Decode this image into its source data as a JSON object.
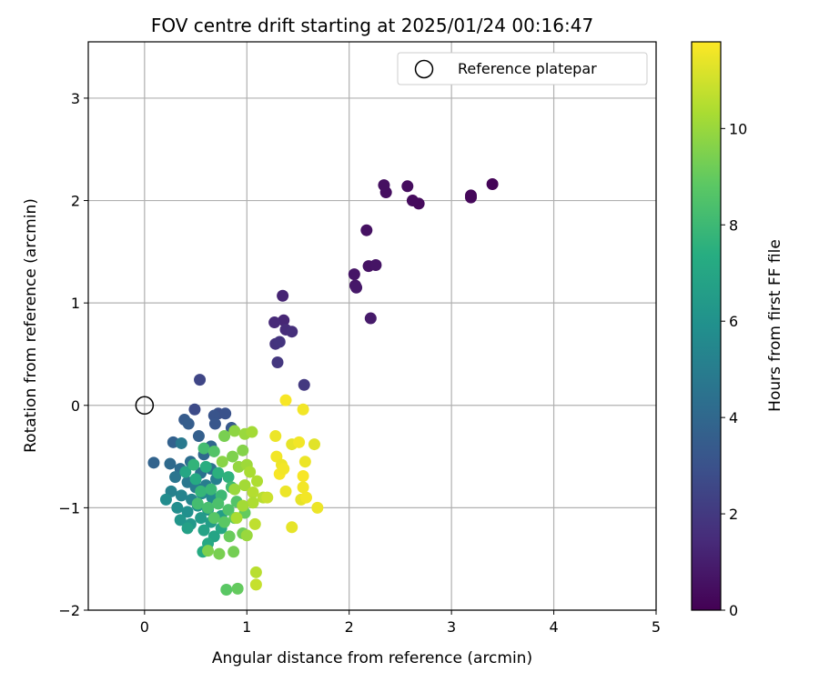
{
  "chart_data": {
    "type": "scatter",
    "title": "FOV centre drift starting at 2025/01/24 00:16:47",
    "xlabel": "Angular distance from reference (arcmin)",
    "ylabel": "Rotation from reference (arcmin)",
    "xlim": [
      -0.55,
      5.0
    ],
    "ylim": [
      -2.0,
      3.55
    ],
    "xticks": [
      0,
      1,
      2,
      3,
      4,
      5
    ],
    "xtick_labels": [
      "0",
      "1",
      "2",
      "3",
      "4",
      "5"
    ],
    "yticks": [
      -2,
      -1,
      0,
      1,
      2,
      3
    ],
    "ytick_labels": [
      "−2",
      "−1",
      "0",
      "1",
      "2",
      "3"
    ],
    "grid": true,
    "legend": {
      "entries": [
        "Reference platepar"
      ],
      "placement": "top-right"
    },
    "colorbar": {
      "label": "Hours from first FF file",
      "colormap": "viridis",
      "range": [
        0,
        11.8
      ],
      "ticks": [
        0,
        2,
        4,
        6,
        8,
        10
      ],
      "tick_labels": [
        "0",
        "2",
        "4",
        "6",
        "8",
        "10"
      ]
    },
    "reference_point": {
      "x": 0,
      "y": 0
    },
    "points": [
      {
        "x": 3.4,
        "y": 2.16,
        "h": 0.1
      },
      {
        "x": 3.19,
        "y": 2.05,
        "h": 0.2
      },
      {
        "x": 3.19,
        "y": 2.03,
        "h": 0.25
      },
      {
        "x": 2.68,
        "y": 1.97,
        "h": 0.3
      },
      {
        "x": 2.62,
        "y": 2.0,
        "h": 0.35
      },
      {
        "x": 2.57,
        "y": 2.14,
        "h": 0.4
      },
      {
        "x": 2.36,
        "y": 2.08,
        "h": 0.45
      },
      {
        "x": 2.34,
        "y": 2.15,
        "h": 0.5
      },
      {
        "x": 2.17,
        "y": 1.71,
        "h": 0.55
      },
      {
        "x": 2.19,
        "y": 1.36,
        "h": 0.6
      },
      {
        "x": 2.26,
        "y": 1.37,
        "h": 0.65
      },
      {
        "x": 2.05,
        "y": 1.28,
        "h": 0.7
      },
      {
        "x": 2.06,
        "y": 1.17,
        "h": 0.75
      },
      {
        "x": 2.07,
        "y": 1.15,
        "h": 0.8
      },
      {
        "x": 2.21,
        "y": 0.85,
        "h": 0.85
      },
      {
        "x": 1.35,
        "y": 1.07,
        "h": 1.2
      },
      {
        "x": 1.36,
        "y": 0.83,
        "h": 1.3
      },
      {
        "x": 1.27,
        "y": 0.81,
        "h": 1.4
      },
      {
        "x": 1.38,
        "y": 0.74,
        "h": 1.5
      },
      {
        "x": 1.44,
        "y": 0.72,
        "h": 1.6
      },
      {
        "x": 1.28,
        "y": 0.6,
        "h": 1.7
      },
      {
        "x": 1.32,
        "y": 0.62,
        "h": 1.8
      },
      {
        "x": 1.3,
        "y": 0.42,
        "h": 1.9
      },
      {
        "x": 1.56,
        "y": 0.2,
        "h": 2.0
      },
      {
        "x": 0.54,
        "y": 0.25,
        "h": 2.5
      },
      {
        "x": 0.49,
        "y": -0.04,
        "h": 2.7
      },
      {
        "x": 0.72,
        "y": -0.08,
        "h": 2.9
      },
      {
        "x": 0.79,
        "y": -0.08,
        "h": 3.0
      },
      {
        "x": 0.68,
        "y": -0.1,
        "h": 3.1
      },
      {
        "x": 0.69,
        "y": -0.18,
        "h": 3.2
      },
      {
        "x": 0.85,
        "y": -0.22,
        "h": 3.3
      },
      {
        "x": 0.39,
        "y": -0.14,
        "h": 3.4
      },
      {
        "x": 0.43,
        "y": -0.18,
        "h": 3.5
      },
      {
        "x": 0.53,
        "y": -0.3,
        "h": 3.6
      },
      {
        "x": 0.28,
        "y": -0.36,
        "h": 3.7
      },
      {
        "x": 0.36,
        "y": -0.37,
        "h": 4.8
      },
      {
        "x": 0.09,
        "y": -0.56,
        "h": 3.8
      },
      {
        "x": 0.65,
        "y": -0.4,
        "h": 3.9
      },
      {
        "x": 0.58,
        "y": -0.48,
        "h": 4.0
      },
      {
        "x": 0.25,
        "y": -0.57,
        "h": 4.1
      },
      {
        "x": 0.35,
        "y": -0.62,
        "h": 4.2
      },
      {
        "x": 0.45,
        "y": -0.55,
        "h": 4.3
      },
      {
        "x": 0.55,
        "y": -0.66,
        "h": 4.4
      },
      {
        "x": 0.65,
        "y": -0.62,
        "h": 4.5
      },
      {
        "x": 0.3,
        "y": -0.7,
        "h": 4.6
      },
      {
        "x": 0.42,
        "y": -0.75,
        "h": 4.7
      },
      {
        "x": 0.5,
        "y": -0.8,
        "h": 4.9
      },
      {
        "x": 0.6,
        "y": -0.78,
        "h": 5.0
      },
      {
        "x": 0.7,
        "y": -0.72,
        "h": 5.1
      },
      {
        "x": 0.26,
        "y": -0.84,
        "h": 5.2
      },
      {
        "x": 0.36,
        "y": -0.88,
        "h": 5.3
      },
      {
        "x": 0.46,
        "y": -0.92,
        "h": 5.4
      },
      {
        "x": 0.56,
        "y": -0.86,
        "h": 5.5
      },
      {
        "x": 0.66,
        "y": -0.9,
        "h": 5.6
      },
      {
        "x": 0.21,
        "y": -0.92,
        "h": 5.7
      },
      {
        "x": 0.32,
        "y": -1.0,
        "h": 5.8
      },
      {
        "x": 0.42,
        "y": -1.04,
        "h": 5.9
      },
      {
        "x": 0.52,
        "y": -0.98,
        "h": 6.0
      },
      {
        "x": 0.62,
        "y": -1.02,
        "h": 6.1
      },
      {
        "x": 0.35,
        "y": -1.12,
        "h": 6.2
      },
      {
        "x": 0.45,
        "y": -1.16,
        "h": 6.3
      },
      {
        "x": 0.55,
        "y": -1.1,
        "h": 6.4
      },
      {
        "x": 0.65,
        "y": -1.14,
        "h": 6.5
      },
      {
        "x": 0.75,
        "y": -1.08,
        "h": 6.6
      },
      {
        "x": 0.42,
        "y": -1.2,
        "h": 6.7
      },
      {
        "x": 0.58,
        "y": -1.22,
        "h": 6.8
      },
      {
        "x": 0.68,
        "y": -1.28,
        "h": 6.9
      },
      {
        "x": 0.75,
        "y": -1.2,
        "h": 7.0
      },
      {
        "x": 0.62,
        "y": -1.35,
        "h": 7.1
      },
      {
        "x": 0.57,
        "y": -1.43,
        "h": 7.2
      },
      {
        "x": 0.4,
        "y": -0.65,
        "h": 7.0
      },
      {
        "x": 0.5,
        "y": -0.72,
        "h": 7.2
      },
      {
        "x": 0.6,
        "y": -0.6,
        "h": 7.4
      },
      {
        "x": 0.72,
        "y": -0.66,
        "h": 7.5
      },
      {
        "x": 0.82,
        "y": -0.7,
        "h": 7.6
      },
      {
        "x": 0.48,
        "y": -0.58,
        "h": 7.7
      },
      {
        "x": 0.55,
        "y": -0.84,
        "h": 7.8
      },
      {
        "x": 0.65,
        "y": -0.82,
        "h": 7.9
      },
      {
        "x": 0.75,
        "y": -0.88,
        "h": 8.0
      },
      {
        "x": 0.85,
        "y": -0.8,
        "h": 8.1
      },
      {
        "x": 0.52,
        "y": -0.96,
        "h": 8.2
      },
      {
        "x": 0.62,
        "y": -1.0,
        "h": 8.3
      },
      {
        "x": 0.72,
        "y": -0.96,
        "h": 8.4
      },
      {
        "x": 0.82,
        "y": -1.02,
        "h": 8.5
      },
      {
        "x": 0.9,
        "y": -0.94,
        "h": 8.6
      },
      {
        "x": 0.68,
        "y": -1.1,
        "h": 8.7
      },
      {
        "x": 0.78,
        "y": -1.14,
        "h": 8.8
      },
      {
        "x": 0.88,
        "y": -1.1,
        "h": 8.9
      },
      {
        "x": 0.98,
        "y": -1.05,
        "h": 9.0
      },
      {
        "x": 0.83,
        "y": -1.28,
        "h": 9.1
      },
      {
        "x": 0.96,
        "y": -1.25,
        "h": 9.2
      },
      {
        "x": 0.87,
        "y": -1.43,
        "h": 9.3
      },
      {
        "x": 0.73,
        "y": -1.45,
        "h": 9.4
      },
      {
        "x": 0.62,
        "y": -1.42,
        "h": 9.5
      },
      {
        "x": 0.8,
        "y": -1.8,
        "h": 8.8
      },
      {
        "x": 0.91,
        "y": -1.79,
        "h": 9.0
      },
      {
        "x": 0.58,
        "y": -0.42,
        "h": 8.2
      },
      {
        "x": 0.68,
        "y": -0.45,
        "h": 8.6
      },
      {
        "x": 0.78,
        "y": -0.3,
        "h": 9.4
      },
      {
        "x": 0.88,
        "y": -0.25,
        "h": 9.8
      },
      {
        "x": 0.98,
        "y": -0.28,
        "h": 10.0
      },
      {
        "x": 1.05,
        "y": -0.26,
        "h": 10.2
      },
      {
        "x": 0.96,
        "y": -0.44,
        "h": 9.6
      },
      {
        "x": 0.86,
        "y": -0.5,
        "h": 9.5
      },
      {
        "x": 0.76,
        "y": -0.55,
        "h": 9.7
      },
      {
        "x": 0.92,
        "y": -0.6,
        "h": 9.9
      },
      {
        "x": 1.0,
        "y": -0.58,
        "h": 10.1
      },
      {
        "x": 1.03,
        "y": -0.65,
        "h": 10.3
      },
      {
        "x": 1.1,
        "y": -0.74,
        "h": 10.4
      },
      {
        "x": 0.98,
        "y": -0.78,
        "h": 10.2
      },
      {
        "x": 0.88,
        "y": -0.82,
        "h": 10.0
      },
      {
        "x": 1.06,
        "y": -0.85,
        "h": 10.5
      },
      {
        "x": 1.16,
        "y": -0.9,
        "h": 10.6
      },
      {
        "x": 1.06,
        "y": -0.95,
        "h": 10.4
      },
      {
        "x": 0.96,
        "y": -0.98,
        "h": 10.2
      },
      {
        "x": 0.9,
        "y": -1.1,
        "h": 10.3
      },
      {
        "x": 1.08,
        "y": -1.16,
        "h": 10.7
      },
      {
        "x": 1.09,
        "y": -1.63,
        "h": 10.6
      },
      {
        "x": 1.09,
        "y": -1.75,
        "h": 10.8
      },
      {
        "x": 1.0,
        "y": -1.27,
        "h": 10.0
      },
      {
        "x": 1.28,
        "y": -0.3,
        "h": 11.5
      },
      {
        "x": 1.29,
        "y": -0.5,
        "h": 11.6
      },
      {
        "x": 1.34,
        "y": -0.58,
        "h": 11.5
      },
      {
        "x": 1.32,
        "y": -0.67,
        "h": 11.7
      },
      {
        "x": 1.36,
        "y": -0.62,
        "h": 11.6
      },
      {
        "x": 1.38,
        "y": -0.84,
        "h": 11.5
      },
      {
        "x": 1.44,
        "y": -0.38,
        "h": 11.4
      },
      {
        "x": 1.51,
        "y": -0.36,
        "h": 11.6
      },
      {
        "x": 1.57,
        "y": -0.55,
        "h": 11.5
      },
      {
        "x": 1.55,
        "y": -0.69,
        "h": 11.7
      },
      {
        "x": 1.55,
        "y": -0.8,
        "h": 11.6
      },
      {
        "x": 1.53,
        "y": -0.92,
        "h": 11.4
      },
      {
        "x": 1.58,
        "y": -0.9,
        "h": 11.6
      },
      {
        "x": 1.69,
        "y": -1.0,
        "h": 11.5
      },
      {
        "x": 1.66,
        "y": -0.38,
        "h": 11.3
      },
      {
        "x": 1.44,
        "y": -1.19,
        "h": 11.4
      },
      {
        "x": 1.38,
        "y": 0.05,
        "h": 11.7
      },
      {
        "x": 1.55,
        "y": -0.04,
        "h": 11.6
      },
      {
        "x": 1.2,
        "y": -0.9,
        "h": 10.9
      }
    ]
  }
}
